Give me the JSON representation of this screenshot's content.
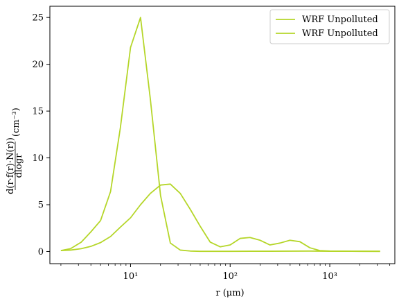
{
  "chart_data": {
    "type": "line",
    "title": "",
    "xlabel": "r (μm)",
    "ylabel": "d(r·f(r)·N(r)) / dlogr (cm⁻³)",
    "ylabel_parts": {
      "numerator": "d(r·f(r)·N(r))",
      "denominator": "dlogr",
      "unit": "(cm⁻³)"
    },
    "xscale": "log",
    "xlim": [
      1.55,
      4500
    ],
    "ylim": [
      -1.3,
      26.2
    ],
    "grid": false,
    "legend_position": "top-right",
    "x_ticks": [
      {
        "value": 10,
        "label": "10¹"
      },
      {
        "value": 100,
        "label": "10²"
      },
      {
        "value": 1000,
        "label": "10³"
      }
    ],
    "y_ticks": [
      {
        "value": 0,
        "label": "0"
      },
      {
        "value": 5,
        "label": "5"
      },
      {
        "value": 10,
        "label": "10"
      },
      {
        "value": 15,
        "label": "15"
      },
      {
        "value": 20,
        "label": "20"
      },
      {
        "value": 25,
        "label": "25"
      }
    ],
    "series": [
      {
        "name": "WRF Unpolluted",
        "color": "#b5d629",
        "points": [
          [
            2.0,
            0.1
          ],
          [
            2.5,
            0.3
          ],
          [
            3.2,
            1.0
          ],
          [
            4.0,
            2.1
          ],
          [
            5.0,
            3.3
          ],
          [
            6.3,
            6.4
          ],
          [
            7.9,
            13.2
          ],
          [
            10.0,
            21.8
          ],
          [
            12.6,
            25.0
          ],
          [
            15.8,
            16.3
          ],
          [
            20.0,
            6.0
          ],
          [
            25.1,
            0.9
          ],
          [
            31.6,
            0.15
          ],
          [
            39.8,
            0.05
          ],
          [
            50.0,
            0.02
          ],
          [
            63.1,
            0.02
          ],
          [
            79.4,
            0.02
          ],
          [
            100,
            0.02
          ],
          [
            158,
            0.03
          ],
          [
            251,
            0.03
          ],
          [
            398,
            0.04
          ],
          [
            631,
            0.05
          ],
          [
            1000,
            0.03
          ],
          [
            2000,
            0.02
          ],
          [
            3200,
            0.02
          ]
        ]
      },
      {
        "name": "WRF Unpolluted",
        "color": "#b5d629",
        "points": [
          [
            2.0,
            0.1
          ],
          [
            2.5,
            0.15
          ],
          [
            3.2,
            0.3
          ],
          [
            4.0,
            0.55
          ],
          [
            5.0,
            0.95
          ],
          [
            6.3,
            1.6
          ],
          [
            7.9,
            2.6
          ],
          [
            10.0,
            3.6
          ],
          [
            12.6,
            5.0
          ],
          [
            15.8,
            6.2
          ],
          [
            20.0,
            7.1
          ],
          [
            25.1,
            7.2
          ],
          [
            31.6,
            6.2
          ],
          [
            39.8,
            4.5
          ],
          [
            50.0,
            2.7
          ],
          [
            63.1,
            1.0
          ],
          [
            79.4,
            0.5
          ],
          [
            100,
            0.7
          ],
          [
            126,
            1.4
          ],
          [
            158,
            1.5
          ],
          [
            200,
            1.2
          ],
          [
            251,
            0.7
          ],
          [
            316,
            0.9
          ],
          [
            398,
            1.2
          ],
          [
            501,
            1.05
          ],
          [
            631,
            0.4
          ],
          [
            794,
            0.1
          ],
          [
            1000,
            0.05
          ],
          [
            2000,
            0.03
          ],
          [
            3200,
            0.02
          ]
        ]
      }
    ]
  }
}
